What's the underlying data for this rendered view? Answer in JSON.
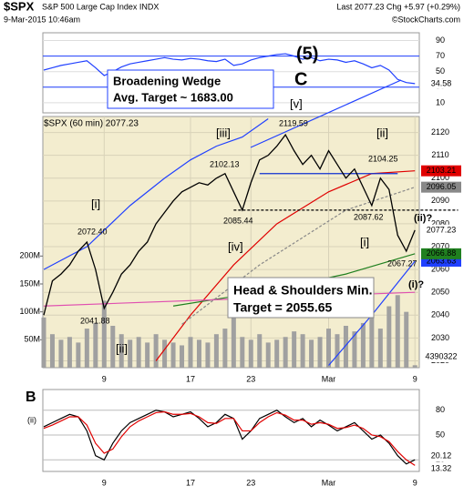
{
  "chart_data": {
    "type": "stock",
    "title": "$SPX",
    "subtitle": "S&P 500 Large Cap Index INDX",
    "date": "9-Mar-2015 10:46am",
    "last_text": "Last 2077.23 Chg +5.97 (+0.29%)",
    "source": "©StockCharts.com",
    "categories": [
      null,
      null,
      null,
      null,
      null,
      null,
      null,
      "9",
      null,
      null,
      null,
      null,
      null,
      null,
      null,
      null,
      null,
      "17",
      null,
      null,
      null,
      null,
      null,
      null,
      "23",
      null,
      null,
      null,
      null,
      null,
      null,
      null,
      null,
      "Mar",
      null,
      null,
      null,
      null,
      null,
      null,
      null,
      null,
      null,
      "9"
    ],
    "price": {
      "color": "#000000",
      "ylim": [
        2017,
        2127
      ],
      "yticks": [
        2020,
        2030,
        2040,
        2050,
        2060,
        2070,
        2080,
        2090,
        2100,
        2110,
        2120
      ],
      "values": [
        2040,
        2055,
        2058,
        2062,
        2068,
        2072,
        2060,
        2043,
        2050,
        2058,
        2062,
        2068,
        2072,
        2080,
        2085,
        2090,
        2094,
        2096,
        2098,
        2097,
        2100,
        2102,
        2094,
        2086,
        2098,
        2108,
        2110,
        2114,
        2119,
        2112,
        2106,
        2110,
        2104,
        2112,
        2106,
        2100,
        2104,
        2096,
        2088,
        2100,
        2095,
        2075,
        2068,
        2077.23
      ]
    },
    "overlays": [
      {
        "color": "#e00000",
        "dash": false,
        "label_box": true,
        "x": [
          13,
          17,
          22,
          27,
          33,
          38,
          43
        ],
        "values": [
          2020,
          2040,
          2062,
          2080,
          2094,
          2102,
          2103.21
        ]
      },
      {
        "color": "#2040ff",
        "dash": false,
        "label_box": false,
        "x": [
          0,
          5,
          10,
          14,
          17,
          20,
          23,
          26
        ],
        "values": [
          2060,
          2070,
          2088,
          2100,
          2108,
          2114,
          2118,
          2126
        ]
      },
      {
        "color": "#2040ff",
        "dash": false,
        "label_box": true,
        "x": [
          33,
          38,
          43
        ],
        "values": [
          2018,
          2040,
          2063.63
        ]
      },
      {
        "color": "#208020",
        "dash": false,
        "label_box": true,
        "x": [
          15,
          25,
          35,
          43
        ],
        "values": [
          2044,
          2050,
          2058,
          2066.88
        ]
      },
      {
        "color": "#e050b0",
        "dash": false,
        "label_box": false,
        "x": [
          0,
          43
        ],
        "values": [
          2044,
          2050
        ]
      },
      {
        "color": "#888888",
        "dash": true,
        "label_box": true,
        "x": [
          16,
          25,
          35,
          43
        ],
        "values": [
          2036,
          2062,
          2086,
          2096.05
        ]
      },
      {
        "color": "#1030d0",
        "dash": false,
        "label_box": false,
        "x": [
          25,
          41
        ],
        "values": [
          2102,
          2102
        ]
      },
      {
        "color": "#000000",
        "dash": true,
        "label_box": false,
        "x": [
          22,
          48
        ],
        "values": [
          2086,
          2086
        ]
      }
    ],
    "volume": {
      "color": "#a0a0a0",
      "ylim": [
        0,
        450000000
      ],
      "yticks": [
        {
          "value": 50000000,
          "label": "50M"
        },
        {
          "value": 100000000,
          "label": "100M"
        },
        {
          "value": 150000000,
          "label": "150M"
        },
        {
          "value": 200000000,
          "label": "200M"
        }
      ],
      "values": [
        90000000,
        60000000,
        50000000,
        55000000,
        45000000,
        70000000,
        80000000,
        120000000,
        75000000,
        60000000,
        50000000,
        55000000,
        45000000,
        60000000,
        50000000,
        45000000,
        40000000,
        55000000,
        50000000,
        45000000,
        60000000,
        70000000,
        90000000,
        55000000,
        50000000,
        60000000,
        45000000,
        50000000,
        55000000,
        65000000,
        60000000,
        50000000,
        55000000,
        70000000,
        60000000,
        75000000,
        65000000,
        80000000,
        90000000,
        70000000,
        110000000,
        130000000,
        100000000,
        4390322
      ]
    },
    "upper_panel": {
      "color": "#2040ff",
      "ylim": [
        -3,
        100
      ],
      "yticks": [
        90,
        70,
        50,
        30,
        10
      ],
      "bands": [
        70,
        30
      ],
      "values": [
        52,
        55,
        58,
        60,
        62,
        64,
        55,
        45,
        50,
        56,
        60,
        62,
        64,
        66,
        68,
        66,
        65,
        67,
        66,
        64,
        63,
        66,
        58,
        60,
        65,
        68,
        70,
        72,
        73,
        70,
        66,
        68,
        64,
        66,
        65,
        62,
        64,
        60,
        55,
        58,
        52,
        40,
        36,
        34.58
      ]
    },
    "lower_panel": {
      "ylim": [
        6,
        105
      ],
      "yticks": [
        80,
        50,
        20
      ],
      "series": [
        {
          "color": "#000000",
          "values": [
            60,
            65,
            70,
            75,
            72,
            55,
            25,
            20,
            40,
            55,
            65,
            70,
            75,
            80,
            78,
            72,
            75,
            78,
            70,
            60,
            65,
            75,
            70,
            45,
            55,
            70,
            75,
            80,
            72,
            65,
            70,
            60,
            68,
            62,
            55,
            60,
            65,
            55,
            45,
            50,
            40,
            25,
            15,
            20.12
          ]
        },
        {
          "color": "#e00000",
          "values": [
            58,
            62,
            67,
            72,
            72,
            62,
            40,
            28,
            33,
            48,
            60,
            67,
            72,
            77,
            78,
            75,
            75,
            76,
            72,
            65,
            64,
            70,
            70,
            55,
            55,
            65,
            72,
            77,
            74,
            68,
            68,
            63,
            65,
            63,
            58,
            59,
            62,
            58,
            50,
            48,
            42,
            30,
            20,
            13.32
          ]
        }
      ]
    },
    "annotations": [
      {
        "text": "(5)",
        "color": "#000000"
      },
      {
        "text": "C",
        "color": "#9030c0"
      },
      {
        "text": "Broadening Wedge",
        "color": "#1030d0"
      },
      {
        "text": "Avg. Target ~ 1683.00",
        "color": "#1030d0"
      },
      {
        "text": "[v]",
        "color": "#e00000"
      },
      {
        "text": "[iii]",
        "color": "#e00000"
      },
      {
        "text": "[i]",
        "color": "#e00000"
      },
      {
        "text": "[ii]",
        "color": "#e00000"
      },
      {
        "text": "[iv]",
        "color": "#e00000"
      },
      {
        "text": "[i]",
        "color": "#e00000"
      },
      {
        "text": "[ii]",
        "color": "#e00000"
      },
      {
        "text": "(ii)?",
        "color": "#208020"
      },
      {
        "text": "(i)?",
        "color": "#208020"
      },
      {
        "text": "Head & Shoulders Min.",
        "color": "#000000"
      },
      {
        "text": "Target = 2055.65",
        "color": "#000000"
      },
      {
        "text": "2119.59",
        "color": "#000000"
      },
      {
        "text": "2102.13",
        "color": "#000000"
      },
      {
        "text": "2104.25",
        "color": "#000000"
      },
      {
        "text": "2085.44",
        "color": "#000000"
      },
      {
        "text": "2087.62",
        "color": "#000000"
      },
      {
        "text": "2072.40",
        "color": "#000000"
      },
      {
        "text": "2041.88",
        "color": "#000000"
      },
      {
        "text": "2067.27",
        "color": "#000000"
      },
      {
        "text": "$SPX (60 min) 2077.23",
        "color": "#000000"
      },
      {
        "text": "B",
        "color": "#9030c0"
      },
      {
        "text": "(ii)",
        "color": "#208020"
      }
    ]
  }
}
